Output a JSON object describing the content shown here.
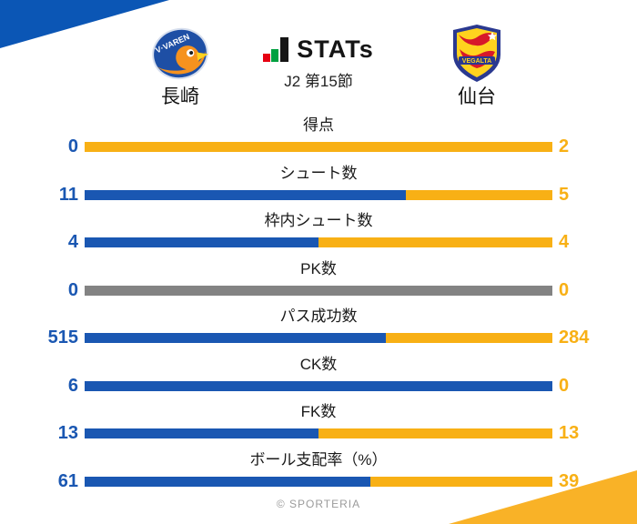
{
  "header": {
    "brand": "STATs",
    "subtitle": "J2 第15節",
    "home_team": {
      "name": "長崎"
    },
    "away_team": {
      "name": "仙台"
    }
  },
  "icons": {
    "brand_icon": "jstats-bar-chart-icon",
    "home_logo": "v-varen-nagasaki-crest",
    "away_logo": "vegalta-sendai-crest"
  },
  "chart_data": {
    "type": "bar",
    "orientation": "horizontal-paired-stacked",
    "title": "STATs J2 第15節",
    "categories": [
      "得点",
      "シュート数",
      "枠内シュート数",
      "PK数",
      "パス成功数",
      "CK数",
      "FK数",
      "ボール支配率（%）"
    ],
    "series": [
      {
        "name": "長崎",
        "side": "home",
        "values": [
          0,
          11,
          4,
          0,
          515,
          6,
          13,
          61
        ]
      },
      {
        "name": "仙台",
        "side": "away",
        "values": [
          2,
          5,
          4,
          0,
          284,
          0,
          13,
          39
        ]
      }
    ],
    "bar_style": "each bar split proportionally between the two teams; all-zero rows shown as a full gray bar",
    "value_labels": "home value left of bar, away value right of bar",
    "grid": false,
    "legend": "team crests and names above chart"
  },
  "footer": {
    "credit": "© SPORTERIA"
  },
  "colors": {
    "home": "#1A57B2",
    "away": "#F8B015",
    "neutral": "#838383",
    "accent_blue": "#0B56B5",
    "accent_yellow": "#F9B227"
  }
}
